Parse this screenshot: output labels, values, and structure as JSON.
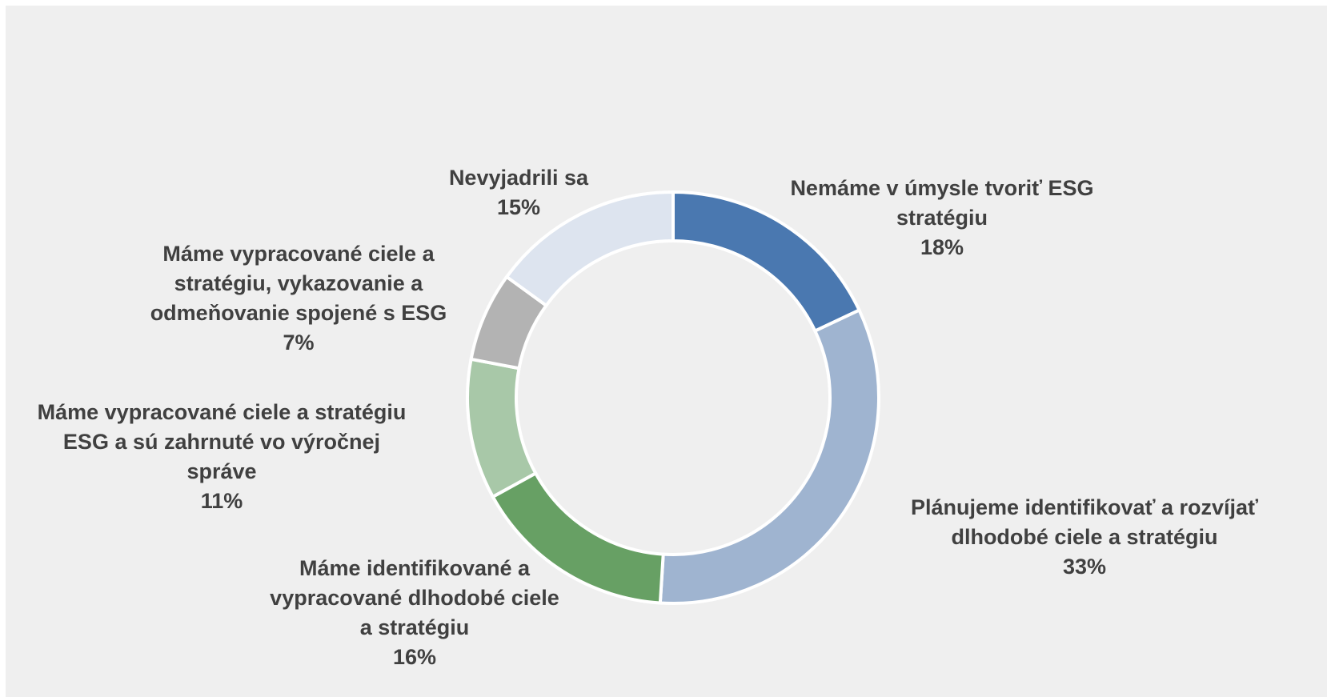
{
  "chart_data": {
    "type": "donut",
    "categories": [
      "Nemáme v úmysle tvoriť ESG stratégiu",
      "Plánujeme identifikovať a rozvíjať dlhodobé ciele a stratégiu",
      "Máme identifikované a vypracované dlhodobé ciele a stratégiu",
      "Máme vypracované ciele a stratégiu ESG a sú zahrnuté vo výročnej správe",
      "Máme vypracované ciele a stratégiu, vykazovanie a odmeňovanie spojené s ESG",
      "Nevyjadrili sa"
    ],
    "values": [
      18,
      33,
      16,
      11,
      7,
      15
    ],
    "value_labels": [
      "18%",
      "33%",
      "16%",
      "11%",
      "7%",
      "15%"
    ],
    "colors": [
      "#4a78b0",
      "#9fb4d0",
      "#67a064",
      "#a8c8a8",
      "#b3b3b3",
      "#dde4ef"
    ]
  }
}
